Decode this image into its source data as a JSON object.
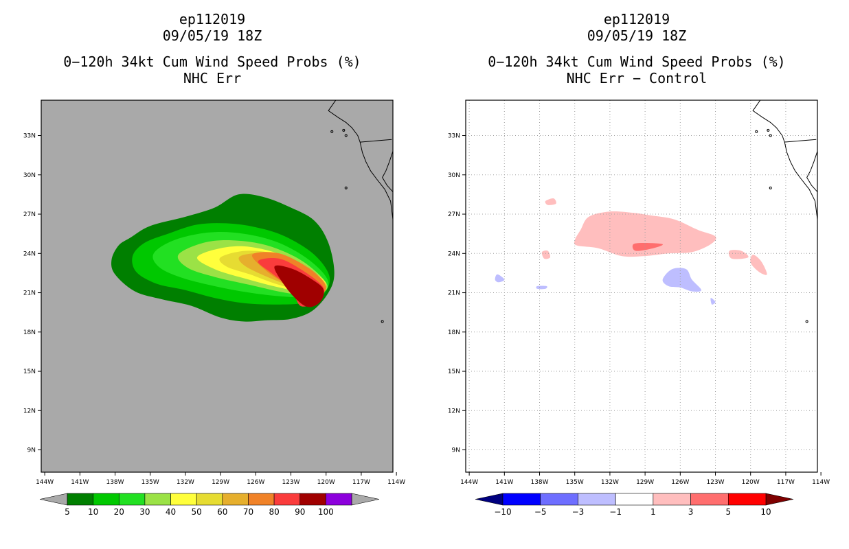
{
  "panels": [
    {
      "id": "left",
      "storm_id": "ep112019",
      "datetime": "09/05/19 18Z",
      "title": "0−120h 34kt Cum Wind Speed Probs (%)",
      "subtitle": "NHC Err",
      "chart_data": {
        "type": "heatmap",
        "title": "0-120h 34kt Cum Wind Speed Probs (%)",
        "subtitle": "NHC Err",
        "x_ticks": [
          "144W",
          "141W",
          "138W",
          "135W",
          "132W",
          "129W",
          "126W",
          "123W",
          "120W",
          "117W",
          "114W"
        ],
        "y_ticks": [
          "9N",
          "12N",
          "15N",
          "18N",
          "21N",
          "24N",
          "27N",
          "30N",
          "33N"
        ],
        "xlim": [
          -144.3,
          -114.3
        ],
        "ylim": [
          7.3,
          35.7
        ],
        "background": "#a9a9a9",
        "grid": false,
        "colorbar": {
          "labels": [
            "5",
            "10",
            "20",
            "30",
            "40",
            "50",
            "60",
            "70",
            "80",
            "90",
            "100"
          ],
          "colors": [
            "#007f00",
            "#00c800",
            "#22e022",
            "#9be246",
            "#ffff3c",
            "#e6dc32",
            "#e6af2d",
            "#f08228",
            "#fa3c3c",
            "#a00000",
            "#8c00dc"
          ],
          "under": "#a9a9a9",
          "over": "#a9a9a9"
        },
        "contours": [
          {
            "level": 5,
            "points": [
              [
                -137.7,
                24.6
              ],
              [
                -136.7,
                25.2
              ],
              [
                -135.0,
                26.1
              ],
              [
                -132.0,
                26.8
              ],
              [
                -129.5,
                27.5
              ],
              [
                -127.5,
                28.5
              ],
              [
                -125.3,
                28.3
              ],
              [
                -123.0,
                27.5
              ],
              [
                -121.0,
                26.5
              ],
              [
                -119.8,
                24.8
              ],
              [
                -119.3,
                22.5
              ],
              [
                -119.8,
                21.0
              ],
              [
                -121.2,
                19.6
              ],
              [
                -123.0,
                19.0
              ],
              [
                -125.0,
                18.9
              ],
              [
                -127.0,
                18.8
              ],
              [
                -129.0,
                19.1
              ],
              [
                -131.5,
                20.0
              ],
              [
                -134.0,
                20.5
              ],
              [
                -136.3,
                21.1
              ],
              [
                -138.0,
                22.4
              ],
              [
                -138.3,
                23.5
              ]
            ]
          },
          {
            "level": 10,
            "points": [
              [
                -136.5,
                23.8
              ],
              [
                -135.5,
                24.8
              ],
              [
                -133.5,
                25.5
              ],
              [
                -131.0,
                26.2
              ],
              [
                -128.5,
                26.3
              ],
              [
                -126.0,
                26.0
              ],
              [
                -123.5,
                25.3
              ],
              [
                -121.0,
                23.9
              ],
              [
                -119.7,
                22.2
              ],
              [
                -120.3,
                20.8
              ],
              [
                -122.0,
                20.2
              ],
              [
                -124.5,
                20.1
              ],
              [
                -127.0,
                20.2
              ],
              [
                -129.5,
                20.6
              ],
              [
                -132.0,
                21.2
              ],
              [
                -134.5,
                21.7
              ],
              [
                -136.2,
                22.6
              ]
            ]
          },
          {
            "level": 20,
            "points": [
              [
                -134.7,
                24.0
              ],
              [
                -133.0,
                25.0
              ],
              [
                -130.0,
                25.6
              ],
              [
                -127.0,
                25.5
              ],
              [
                -124.0,
                24.8
              ],
              [
                -121.3,
                23.4
              ],
              [
                -119.8,
                21.8
              ],
              [
                -120.8,
                20.7
              ],
              [
                -123.5,
                20.7
              ],
              [
                -126.5,
                21.0
              ],
              [
                -129.5,
                21.5
              ],
              [
                -132.5,
                22.2
              ],
              [
                -134.3,
                23.0
              ]
            ]
          },
          {
            "level": 30,
            "points": [
              [
                -132.6,
                23.9
              ],
              [
                -130.5,
                24.8
              ],
              [
                -128.0,
                25.0
              ],
              [
                -125.0,
                24.6
              ],
              [
                -122.0,
                23.4
              ],
              [
                -119.9,
                21.6
              ],
              [
                -121.0,
                20.8
              ],
              [
                -123.5,
                21.0
              ],
              [
                -126.5,
                21.6
              ],
              [
                -129.5,
                22.2
              ],
              [
                -131.8,
                22.9
              ]
            ]
          },
          {
            "level": 40,
            "points": [
              [
                -131.0,
                23.7
              ],
              [
                -129.0,
                24.4
              ],
              [
                -126.5,
                24.5
              ],
              [
                -123.5,
                23.8
              ],
              [
                -120.8,
                22.4
              ],
              [
                -120.0,
                21.5
              ],
              [
                -121.5,
                21.0
              ],
              [
                -124.0,
                21.4
              ],
              [
                -127.0,
                22.1
              ],
              [
                -129.5,
                22.8
              ]
            ]
          },
          {
            "level": 50,
            "points": [
              [
                -129.0,
                23.7
              ],
              [
                -126.8,
                24.2
              ],
              [
                -124.0,
                23.9
              ],
              [
                -121.5,
                22.8
              ],
              [
                -120.0,
                21.6
              ],
              [
                -121.5,
                21.1
              ],
              [
                -124.0,
                21.6
              ],
              [
                -126.5,
                22.4
              ],
              [
                -128.5,
                23.0
              ]
            ]
          },
          {
            "level": 60,
            "points": [
              [
                -127.3,
                23.8
              ],
              [
                -125.0,
                24.0
              ],
              [
                -122.5,
                23.2
              ],
              [
                -120.3,
                21.8
              ],
              [
                -120.3,
                21.2
              ],
              [
                -122.5,
                21.4
              ],
              [
                -125.0,
                22.2
              ],
              [
                -127.0,
                23.1
              ]
            ]
          },
          {
            "level": 70,
            "points": [
              [
                -126.3,
                23.9
              ],
              [
                -124.0,
                24.0
              ],
              [
                -121.5,
                22.9
              ],
              [
                -120.1,
                21.7
              ],
              [
                -120.2,
                21.0
              ],
              [
                -121.2,
                20.7
              ],
              [
                -122.2,
                20.5
              ],
              [
                -123.2,
                21.5
              ],
              [
                -125.0,
                22.6
              ]
            ]
          },
          {
            "level": 80,
            "points": [
              [
                -125.8,
                23.4
              ],
              [
                -124.0,
                23.6
              ],
              [
                -122.0,
                22.7
              ],
              [
                -120.3,
                21.5
              ],
              [
                -120.3,
                20.7
              ],
              [
                -121.0,
                20.2
              ],
              [
                -122.2,
                20.0
              ],
              [
                -123.0,
                21.3
              ],
              [
                -124.5,
                22.4
              ]
            ]
          },
          {
            "level": 90,
            "points": [
              [
                -124.4,
                23.0
              ],
              [
                -122.8,
                22.8
              ],
              [
                -121.0,
                21.9
              ],
              [
                -120.2,
                21.2
              ],
              [
                -120.5,
                20.3
              ],
              [
                -121.4,
                19.9
              ],
              [
                -122.3,
                20.3
              ],
              [
                -123.5,
                21.5
              ]
            ]
          }
        ]
      }
    },
    {
      "id": "right",
      "storm_id": "ep112019",
      "datetime": "09/05/19 18Z",
      "title": "0−120h 34kt Cum Wind Speed Probs (%)",
      "subtitle": "NHC Err − Control",
      "chart_data": {
        "type": "heatmap",
        "title": "0-120h 34kt Cum Wind Speed Probs (%)",
        "subtitle": "NHC Err - Control",
        "x_ticks": [
          "144W",
          "141W",
          "138W",
          "135W",
          "132W",
          "129W",
          "126W",
          "123W",
          "120W",
          "117W",
          "114W"
        ],
        "y_ticks": [
          "9N",
          "12N",
          "15N",
          "18N",
          "21N",
          "24N",
          "27N",
          "30N",
          "33N"
        ],
        "xlim": [
          -144.3,
          -114.3
        ],
        "ylim": [
          7.3,
          35.7
        ],
        "background": "#ffffff",
        "grid": true,
        "colorbar": {
          "labels": [
            "−10",
            "−5",
            "−3",
            "−1",
            "1",
            "3",
            "5",
            "10"
          ],
          "colors": [
            "#0000ff",
            "#6e6eff",
            "#bebeff",
            "#ffffff",
            "#ffbebe",
            "#ff6e6e",
            "#ff0000"
          ],
          "under": "#00007f",
          "over": "#7f0000"
        },
        "contours": [
          {
            "level": 1,
            "points": [
              [
                -134.5,
                25.8
              ],
              [
                -133.8,
                26.8
              ],
              [
                -132.0,
                27.2
              ],
              [
                -130.0,
                27.1
              ],
              [
                -128.5,
                26.9
              ],
              [
                -126.5,
                26.6
              ],
              [
                -124.5,
                25.8
              ],
              [
                -123.0,
                25.3
              ],
              [
                -123.4,
                24.7
              ],
              [
                -125.0,
                24.1
              ],
              [
                -127.0,
                24.0
              ],
              [
                -129.0,
                23.8
              ],
              [
                -131.0,
                23.8
              ],
              [
                -133.0,
                24.4
              ],
              [
                -134.8,
                24.6
              ],
              [
                -135.0,
                25.0
              ]
            ]
          },
          {
            "level": 1,
            "points": [
              [
                -137.5,
                28.0
              ],
              [
                -136.8,
                28.2
              ],
              [
                -136.6,
                27.8
              ],
              [
                -137.3,
                27.7
              ]
            ]
          },
          {
            "level": 1,
            "points": [
              [
                -121.8,
                24.2
              ],
              [
                -120.8,
                24.2
              ],
              [
                -120.2,
                23.7
              ],
              [
                -121.6,
                23.6
              ]
            ]
          },
          {
            "level": 1,
            "points": [
              [
                -119.8,
                23.9
              ],
              [
                -119.1,
                23.4
              ],
              [
                -118.6,
                22.4
              ],
              [
                -119.3,
                22.6
              ],
              [
                -120.0,
                23.3
              ]
            ]
          },
          {
            "level": 1,
            "points": [
              [
                -137.8,
                24.1
              ],
              [
                -137.3,
                24.2
              ],
              [
                -137.1,
                23.7
              ],
              [
                -137.6,
                23.6
              ]
            ]
          },
          {
            "level": 3,
            "points": [
              [
                -130.0,
                24.7
              ],
              [
                -129.0,
                24.8
              ],
              [
                -127.5,
                24.7
              ],
              [
                -128.3,
                24.4
              ],
              [
                -129.8,
                24.2
              ]
            ]
          },
          {
            "level": -1,
            "points": [
              [
                -126.7,
                22.8
              ],
              [
                -125.5,
                22.8
              ],
              [
                -125.0,
                22.0
              ],
              [
                -124.2,
                21.2
              ],
              [
                -125.0,
                21.1
              ],
              [
                -126.0,
                21.4
              ],
              [
                -127.0,
                21.5
              ],
              [
                -127.5,
                22.0
              ]
            ]
          },
          {
            "level": -1,
            "points": [
              [
                -141.6,
                22.4
              ],
              [
                -141.0,
                22.0
              ],
              [
                -141.5,
                21.8
              ],
              [
                -141.8,
                22.0
              ]
            ]
          },
          {
            "level": -1,
            "points": [
              [
                -138.2,
                21.5
              ],
              [
                -137.4,
                21.5
              ],
              [
                -137.5,
                21.3
              ],
              [
                -138.2,
                21.3
              ]
            ]
          },
          {
            "level": -1,
            "points": [
              [
                -123.4,
                20.6
              ],
              [
                -123.0,
                20.3
              ],
              [
                -123.3,
                20.1
              ]
            ]
          }
        ]
      }
    }
  ]
}
